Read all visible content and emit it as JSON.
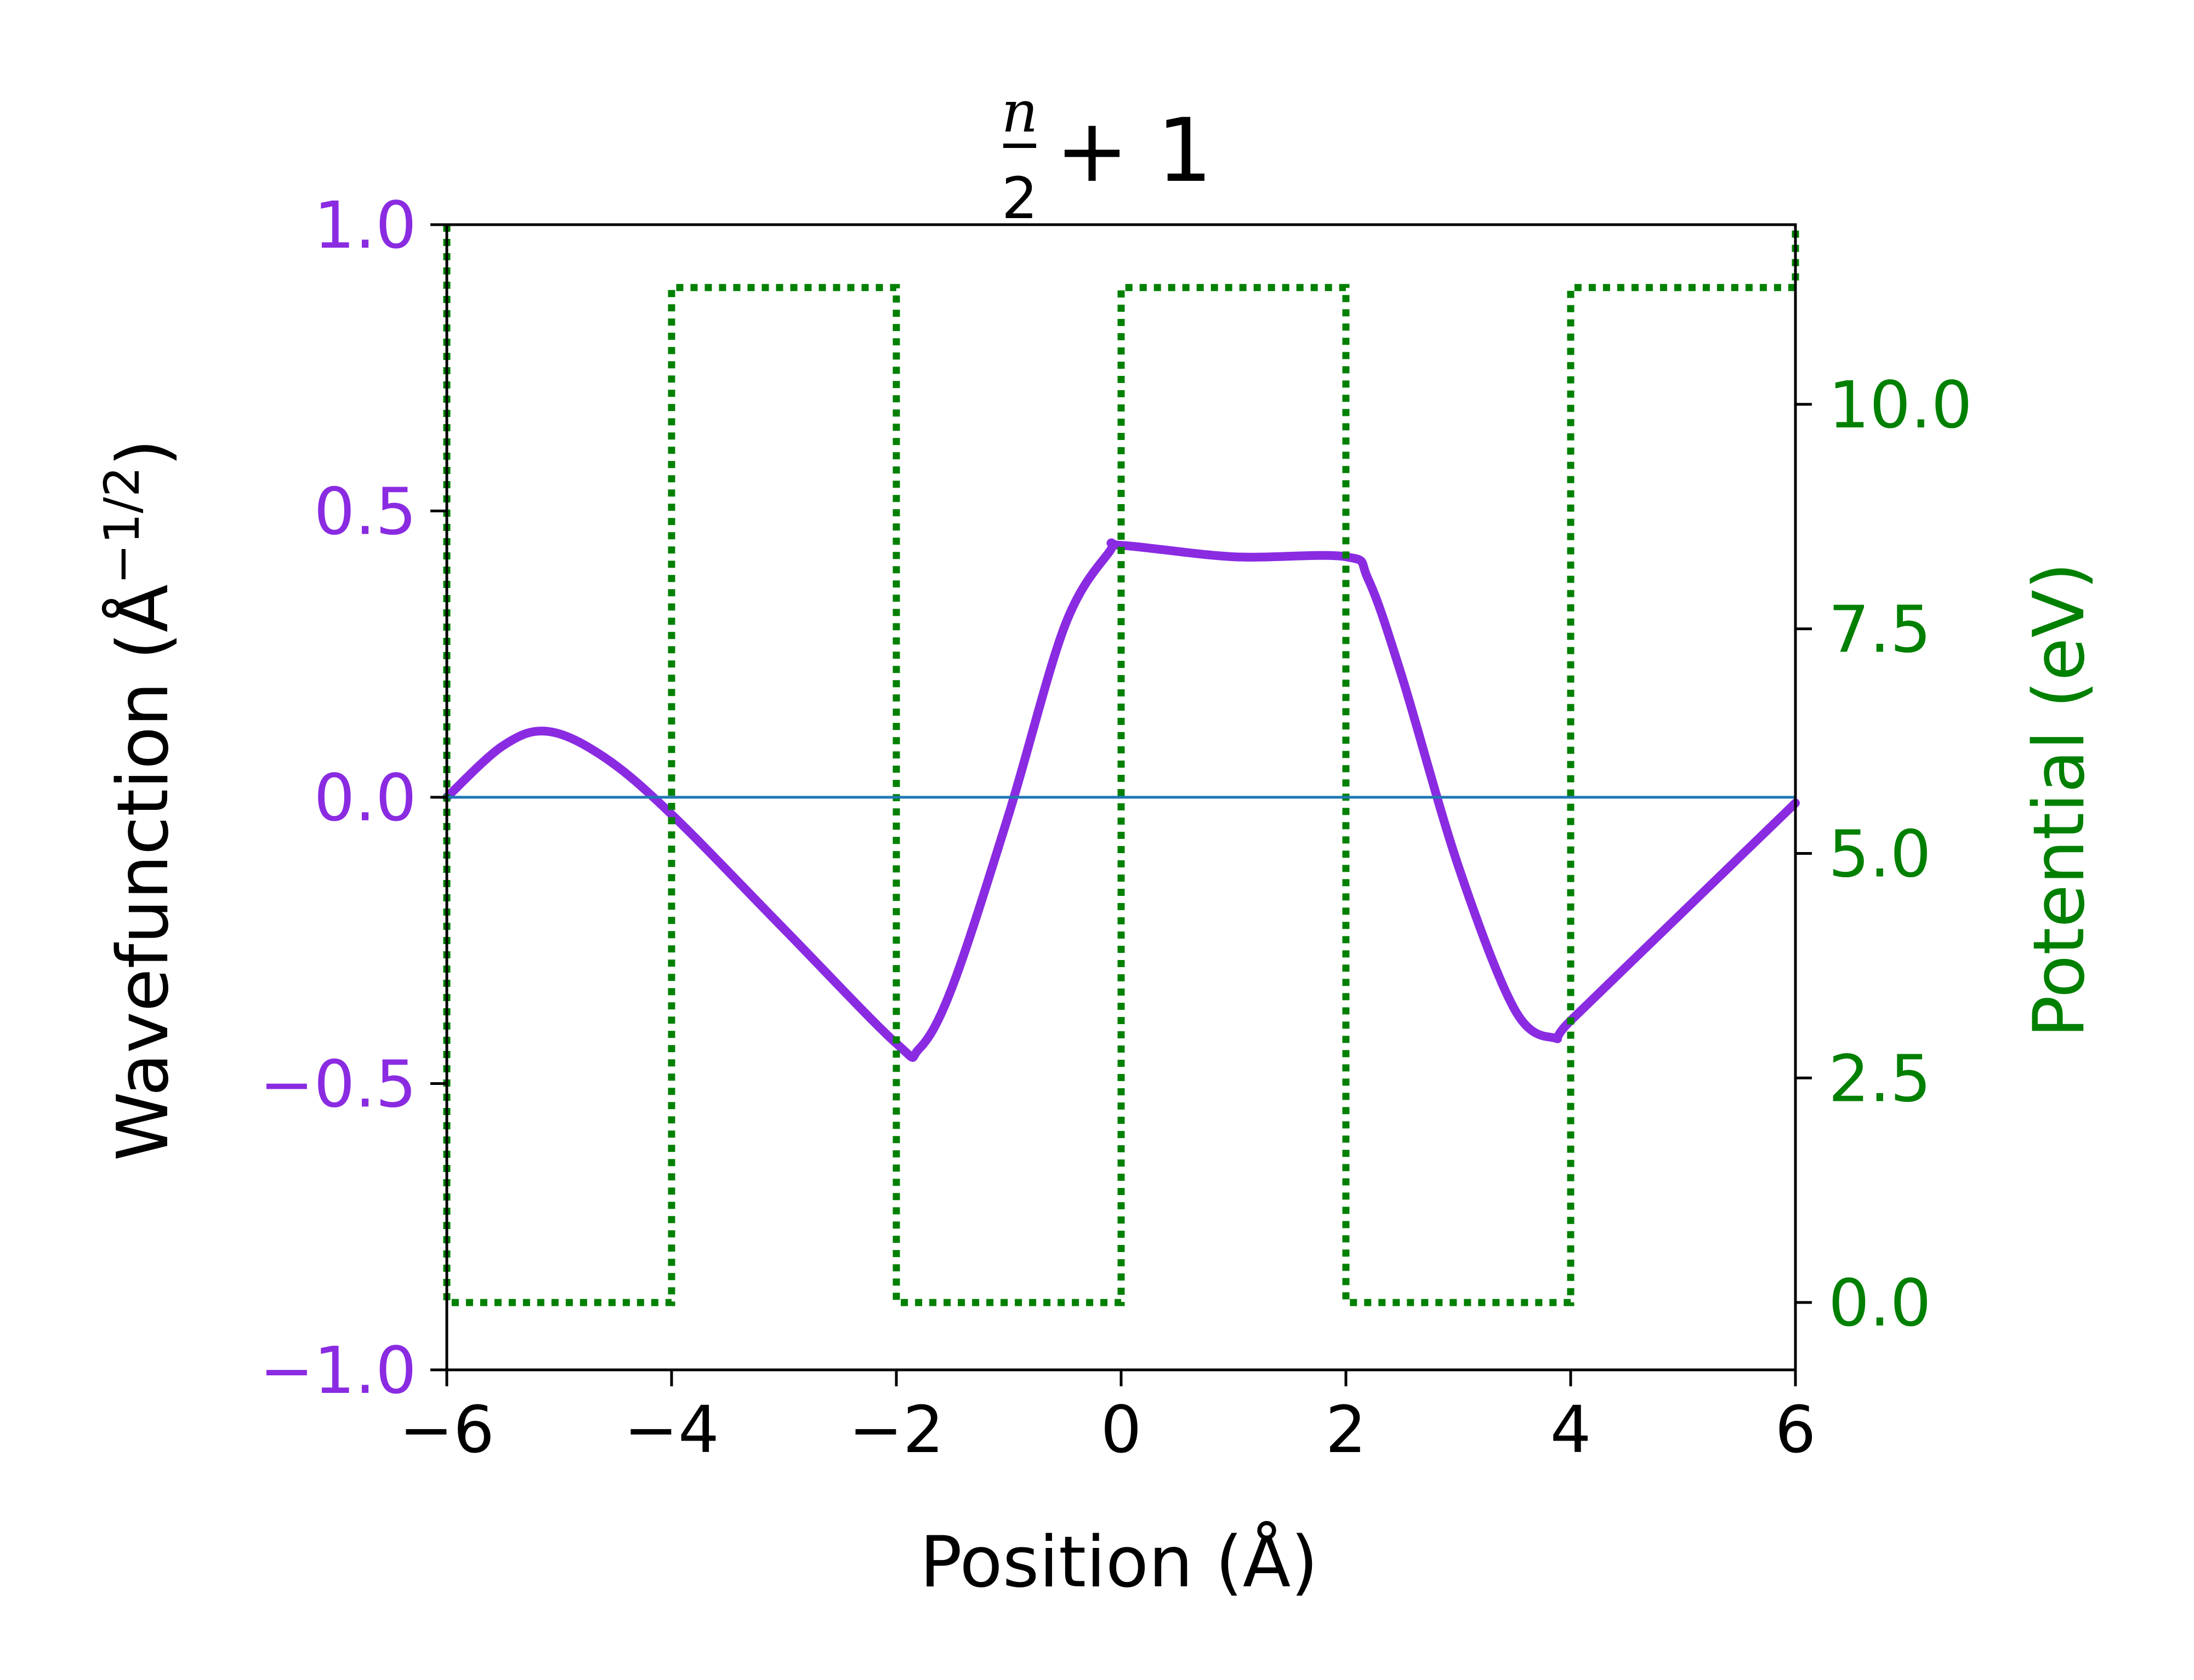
{
  "chart_data": {
    "type": "line",
    "title": {
      "numerator": "n",
      "denominator": "2",
      "suffix": "+ 1"
    },
    "xlabel": "Position (Å)",
    "ylabel_left": {
      "text": "Wavefunction (Å",
      "exponent": "−1/2",
      "close": ")"
    },
    "ylabel_right": "Potential (eV)",
    "xlim": [
      -6,
      6
    ],
    "ylim_left": [
      -1.0,
      1.0
    ],
    "ylim_right": [
      -0.75,
      12.0
    ],
    "x_ticks": [
      -6,
      -4,
      -2,
      0,
      2,
      4,
      6
    ],
    "x_tick_labels": [
      "−6",
      "−4",
      "−2",
      "0",
      "2",
      "4",
      "6"
    ],
    "y_left_ticks": [
      -1.0,
      -0.5,
      0.0,
      0.5,
      1.0
    ],
    "y_left_tick_labels": [
      "−1.0",
      "−0.5",
      "0.0",
      "0.5",
      "1.0"
    ],
    "y_right_ticks": [
      0.0,
      2.5,
      5.0,
      7.5,
      10.0
    ],
    "y_right_tick_labels": [
      "0.0",
      "2.5",
      "5.0",
      "7.5",
      "10.0"
    ],
    "colors": {
      "wavefunction": "#8a2be2",
      "potential": "#008000",
      "zero_line": "#1f77b4",
      "left_axis_text": "#8a2be2",
      "right_axis_text": "#008000"
    },
    "series": [
      {
        "axis": "left",
        "style": "solid",
        "x": [
          -6.0,
          -5.5,
          -5.1,
          -4.6,
          -4.0,
          -3.0,
          -2.0,
          -1.8,
          -1.5,
          -1.0,
          -0.5,
          -0.1,
          0.0,
          1.0,
          2.0,
          2.2,
          2.5,
          3.0,
          3.5,
          3.85,
          4.0,
          5.0,
          6.0
        ],
        "y": [
          0.0,
          0.09,
          0.115,
          0.07,
          -0.03,
          -0.23,
          -0.43,
          -0.44,
          -0.33,
          -0.03,
          0.3,
          0.43,
          0.44,
          0.42,
          0.42,
          0.38,
          0.21,
          -0.12,
          -0.37,
          -0.42,
          -0.39,
          -0.2,
          -0.01
        ]
      },
      {
        "axis": "right",
        "style": "dotted",
        "x": [
          -6,
          -6,
          -4,
          -4,
          -2,
          -2,
          0,
          0,
          2,
          2,
          4,
          4,
          6,
          6
        ],
        "y": [
          12.0,
          0.0,
          0.0,
          11.3,
          11.3,
          0.0,
          0.0,
          11.3,
          11.3,
          0.0,
          0.0,
          11.3,
          11.3,
          12.0
        ]
      },
      {
        "axis": "left",
        "style": "solid",
        "x": [
          -6,
          6
        ],
        "y": [
          0.0,
          0.0
        ]
      }
    ]
  }
}
